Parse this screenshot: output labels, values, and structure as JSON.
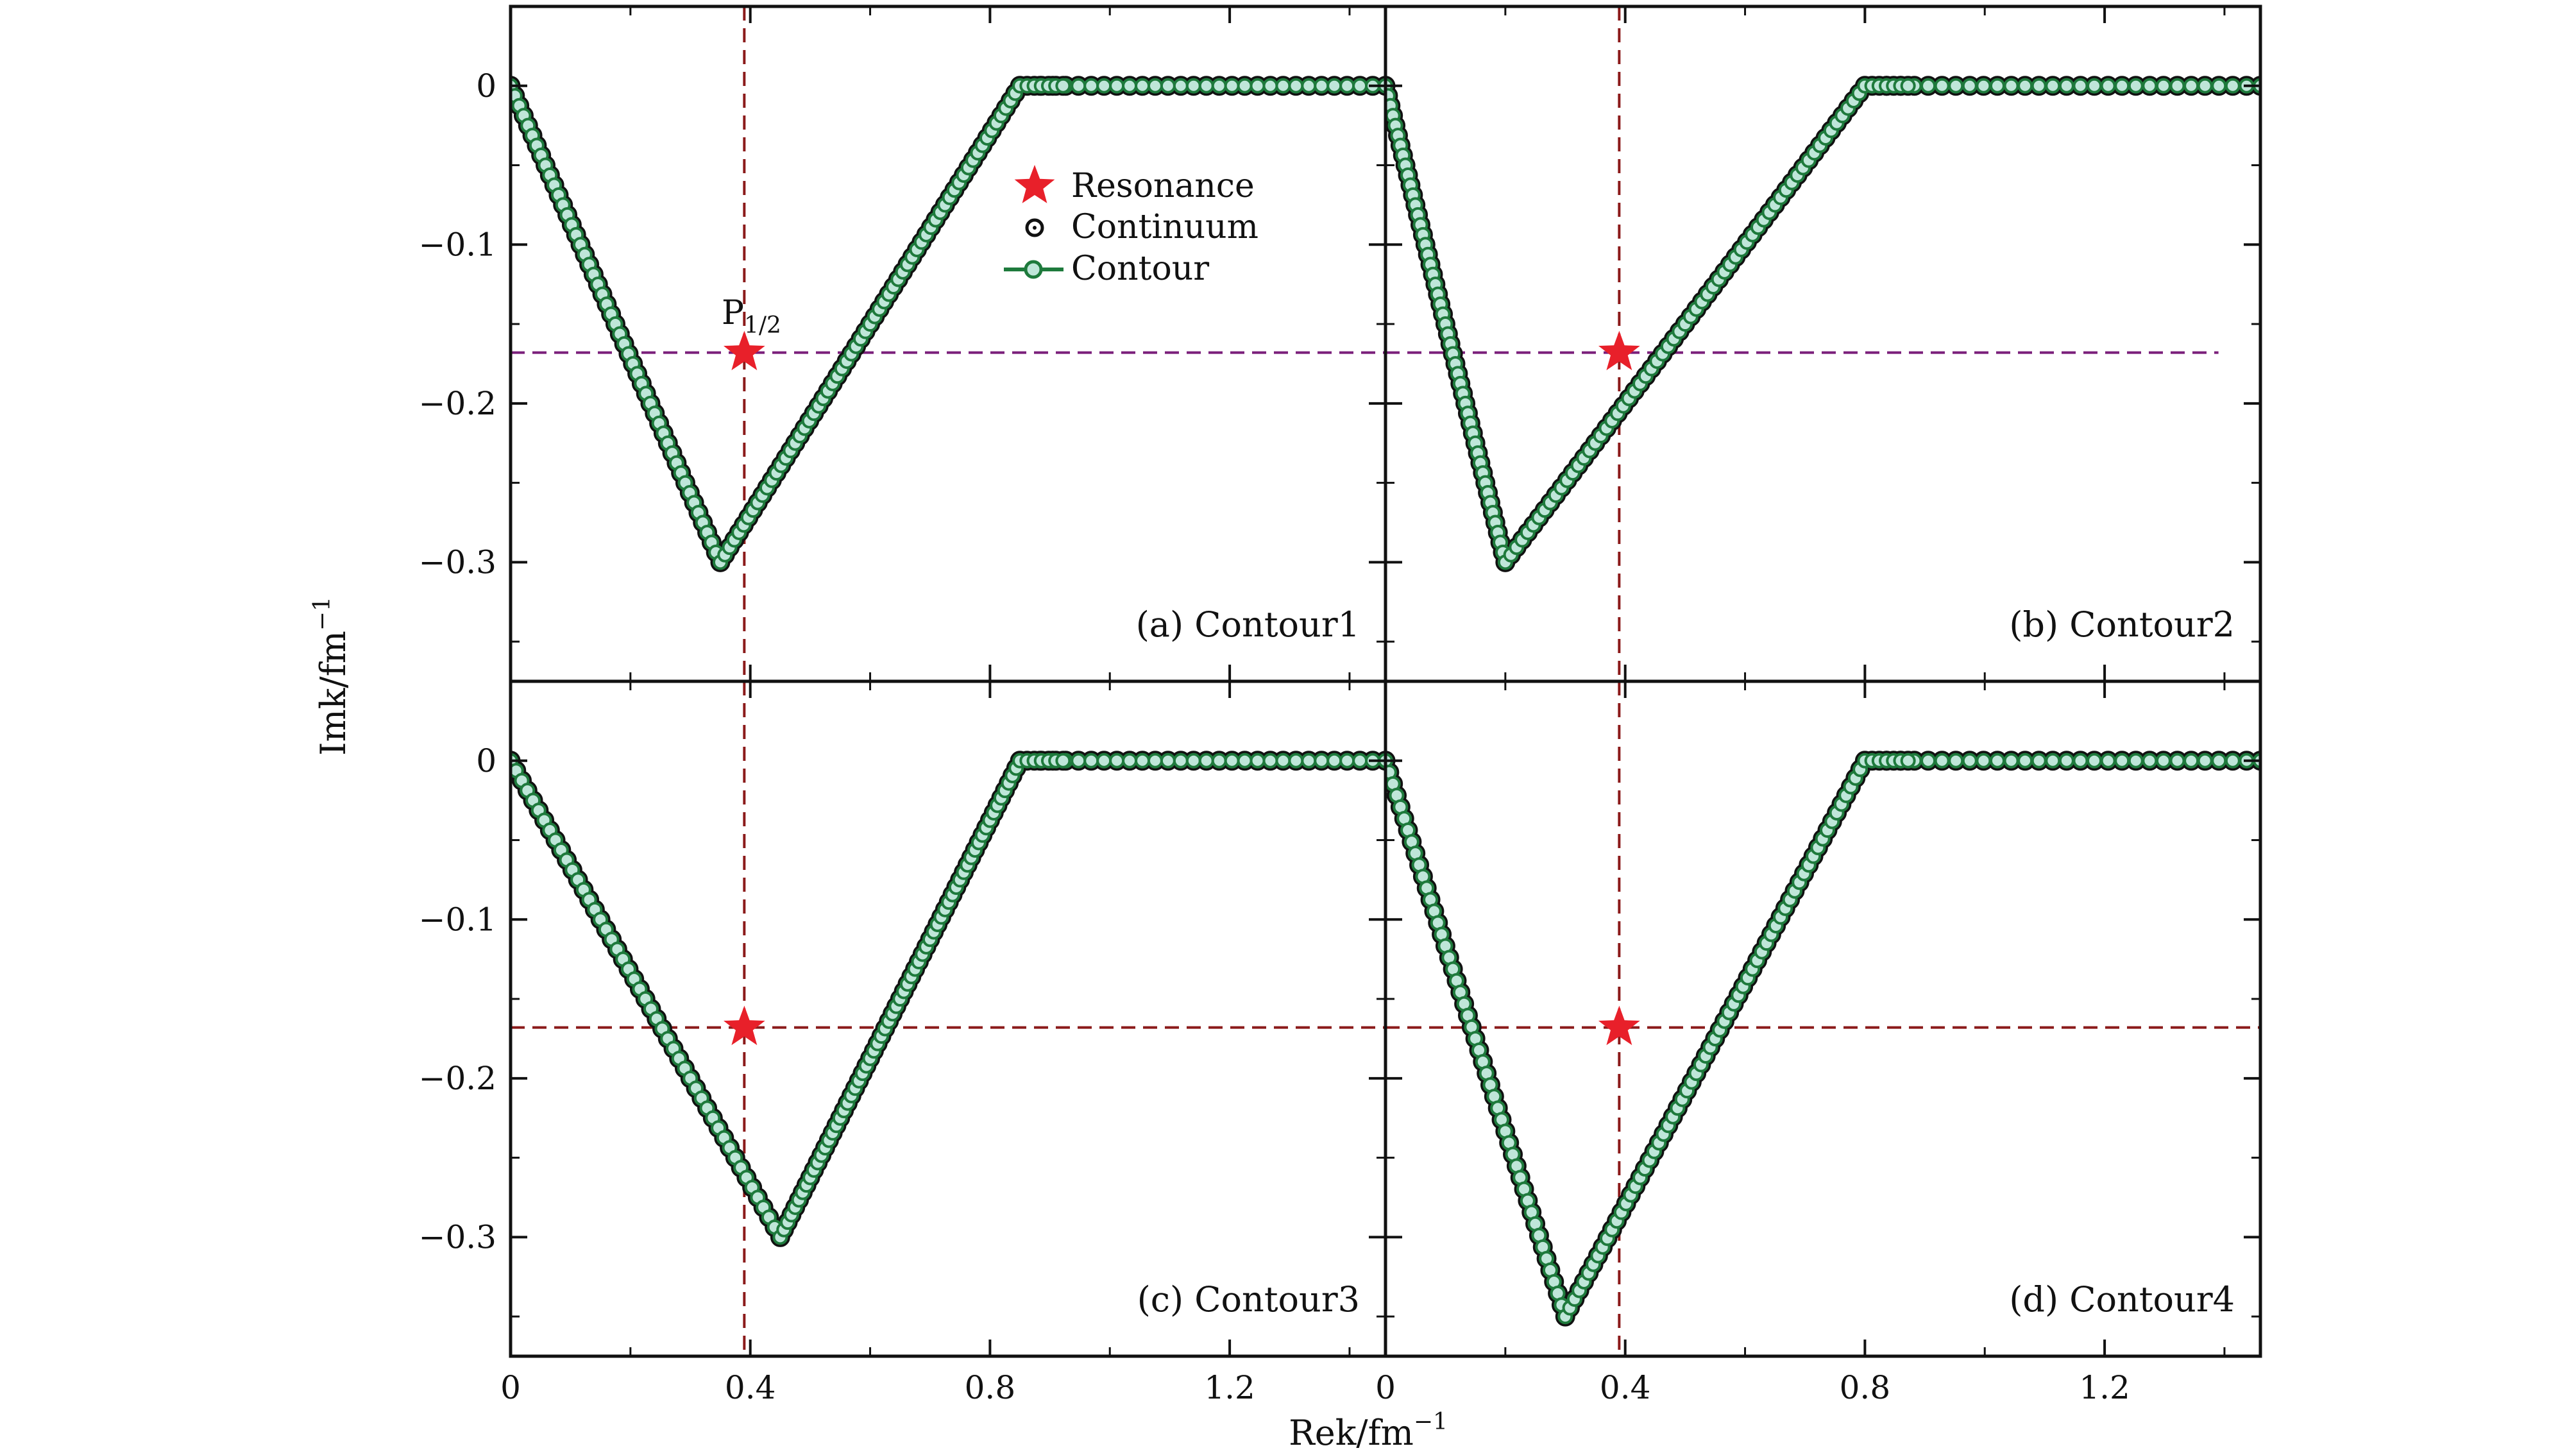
{
  "chart_data": {
    "type": "line",
    "layout": "2x2 panels",
    "xlabel": "Rek/fm",
    "xlabel_exp": "−1",
    "ylabel": "Imk/fm",
    "ylabel_exp": "−1",
    "xlim": [
      0,
      1.46
    ],
    "ylim": [
      -0.375,
      0.05
    ],
    "xticks": [
      0,
      0.4,
      0.8,
      1.2
    ],
    "xtick_labels": [
      "0",
      "0.4",
      "0.8",
      "1.2"
    ],
    "yticks": [
      0,
      -0.1,
      -0.2,
      -0.3
    ],
    "ytick_labels": [
      "0",
      "−0.1",
      "−0.2",
      "−0.3"
    ],
    "resonance": {
      "x": 0.39,
      "y": -0.168
    },
    "annotation": {
      "text": "P",
      "subscript": "1/2"
    },
    "legend": {
      "placement": "top-center of panel (a)",
      "items": [
        "Resonance",
        "Continuum",
        "Contour"
      ]
    },
    "colors": {
      "resonance": "#e8202a",
      "continuum": "#111111",
      "contour_line": "#1e7a3c",
      "contour_marker_fill": "#bfe6d9",
      "ref_line_dark_red": "#8b1a1a",
      "ref_line_purple": "#7a1f7a"
    },
    "panels": [
      {
        "label": "(a) Contour1",
        "vertices": [
          [
            0,
            0
          ],
          [
            0.35,
            -0.3
          ],
          [
            0.85,
            0
          ],
          [
            1.46,
            0
          ]
        ],
        "horizontal_ref_color": "purple",
        "horizontal_ref_span": [
          0,
          1.46
        ]
      },
      {
        "label": "(b) Contour2",
        "vertices": [
          [
            0,
            0
          ],
          [
            0.2,
            -0.3
          ],
          [
            0.8,
            0
          ],
          [
            1.46,
            0
          ]
        ],
        "horizontal_ref_color": "purple",
        "horizontal_ref_span": [
          0,
          1.39
        ]
      },
      {
        "label": "(c) Contour3",
        "vertices": [
          [
            0,
            0
          ],
          [
            0.45,
            -0.3
          ],
          [
            0.85,
            0
          ],
          [
            1.46,
            0
          ]
        ],
        "horizontal_ref_color": "dark_red",
        "horizontal_ref_span": [
          0,
          1.46
        ]
      },
      {
        "label": "(d) Contour4",
        "vertices": [
          [
            0,
            0
          ],
          [
            0.3,
            -0.35
          ],
          [
            0.8,
            0
          ],
          [
            1.46,
            0
          ]
        ],
        "horizontal_ref_color": "dark_red",
        "horizontal_ref_span": [
          0,
          1.46
        ]
      }
    ]
  }
}
